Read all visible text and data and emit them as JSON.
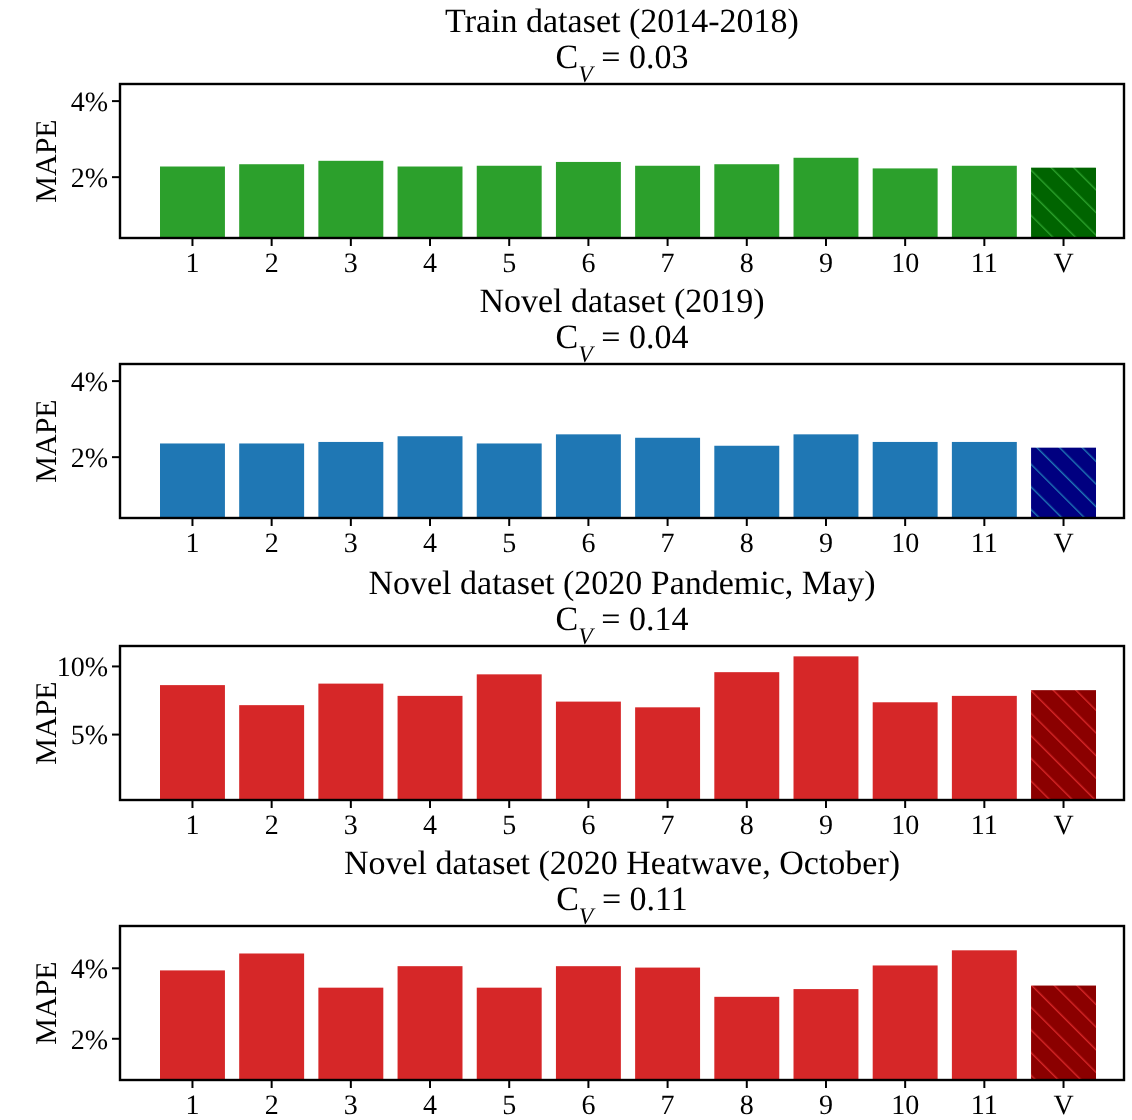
{
  "chart_data": [
    {
      "type": "bar",
      "title": "Train dataset (2014-2018)",
      "subtitle": "C$_{V}$ = 0.03",
      "ylabel": "MAPE",
      "categories": [
        "1",
        "2",
        "3",
        "4",
        "5",
        "6",
        "7",
        "8",
        "9",
        "10",
        "11",
        "V"
      ],
      "values": [
        2.28,
        2.34,
        2.43,
        2.28,
        2.3,
        2.4,
        2.3,
        2.34,
        2.51,
        2.23,
        2.3,
        2.25
      ],
      "colors": [
        "#2ca02c",
        "#2ca02c",
        "#2ca02c",
        "#2ca02c",
        "#2ca02c",
        "#2ca02c",
        "#2ca02c",
        "#2ca02c",
        "#2ca02c",
        "#2ca02c",
        "#2ca02c",
        "#006400"
      ],
      "ylim": [
        0.4,
        4.45
      ],
      "yticks": [
        {
          "value": 2,
          "label": "2%"
        },
        {
          "value": 4,
          "label": "4%"
        }
      ]
    },
    {
      "type": "bar",
      "title": "Novel dataset (2019)",
      "subtitle": "C$_{V}$ = 0.04",
      "ylabel": "MAPE",
      "categories": [
        "1",
        "2",
        "3",
        "4",
        "5",
        "6",
        "7",
        "8",
        "9",
        "10",
        "11",
        "V"
      ],
      "values": [
        2.36,
        2.36,
        2.4,
        2.55,
        2.36,
        2.6,
        2.51,
        2.3,
        2.6,
        2.4,
        2.4,
        2.25
      ],
      "colors": [
        "#1f77b4",
        "#1f77b4",
        "#1f77b4",
        "#1f77b4",
        "#1f77b4",
        "#1f77b4",
        "#1f77b4",
        "#1f77b4",
        "#1f77b4",
        "#1f77b4",
        "#1f77b4",
        "#000080"
      ],
      "ylim": [
        0.4,
        4.45
      ],
      "yticks": [
        {
          "value": 2,
          "label": "2%"
        },
        {
          "value": 4,
          "label": "4%"
        }
      ]
    },
    {
      "type": "bar",
      "title": "Novel dataset (2020 Pandemic, May)",
      "subtitle": "C$_{V}$ = 0.14",
      "ylabel": "MAPE",
      "categories": [
        "1",
        "2",
        "3",
        "4",
        "5",
        "6",
        "7",
        "8",
        "9",
        "10",
        "11",
        "V"
      ],
      "values": [
        8.63,
        7.16,
        8.74,
        7.84,
        9.42,
        7.42,
        7.0,
        9.58,
        10.74,
        7.37,
        7.84,
        8.26
      ],
      "colors": [
        "#d62728",
        "#d62728",
        "#d62728",
        "#d62728",
        "#d62728",
        "#d62728",
        "#d62728",
        "#d62728",
        "#d62728",
        "#d62728",
        "#d62728",
        "#8b0000"
      ],
      "ylim": [
        0.2,
        11.5
      ],
      "yticks": [
        {
          "value": 5,
          "label": "5%"
        },
        {
          "value": 10,
          "label": "10%"
        }
      ]
    },
    {
      "type": "bar",
      "title": "Novel dataset (2020 Heatwave, October)",
      "subtitle": "C$_{V}$ = 0.11",
      "ylabel": "MAPE",
      "categories": [
        "1",
        "2",
        "3",
        "4",
        "5",
        "6",
        "7",
        "8",
        "9",
        "10",
        "11",
        "V"
      ],
      "values": [
        3.94,
        4.42,
        3.45,
        4.06,
        3.45,
        4.06,
        4.02,
        3.19,
        3.41,
        4.08,
        4.51,
        3.51
      ],
      "colors": [
        "#d62728",
        "#d62728",
        "#d62728",
        "#d62728",
        "#d62728",
        "#d62728",
        "#d62728",
        "#d62728",
        "#d62728",
        "#d62728",
        "#d62728",
        "#8b0000"
      ],
      "ylim": [
        0.83,
        5.2
      ],
      "yticks": [
        {
          "value": 2,
          "label": "2%"
        },
        {
          "value": 4,
          "label": "4%"
        }
      ]
    }
  ]
}
